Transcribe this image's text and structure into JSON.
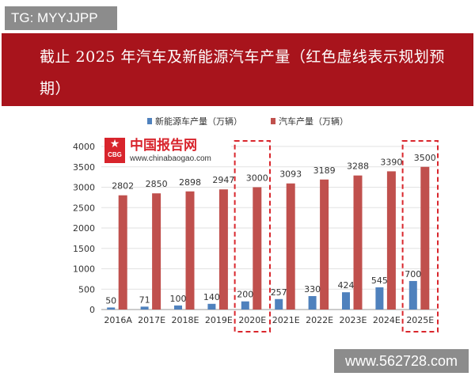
{
  "tag": "TG: MYYJJPP",
  "banner": {
    "title": "截止 2025 年汽车及新能源汽车产量（红色虚线表示规划预期）"
  },
  "logo": {
    "name": "中国报告网",
    "url": "www.chinabaogao.com",
    "mark": "CBG"
  },
  "watermark": "www.562728.com",
  "colors": {
    "banner": "#a8141c",
    "nev": "#4f81bd",
    "car": "#c0504d",
    "highlight": "#d9262c"
  },
  "chart_data": {
    "type": "bar",
    "categories": [
      "2016A",
      "2017E",
      "2018E",
      "2019E",
      "2020E",
      "2021E",
      "2022E",
      "2023E",
      "2024E",
      "2025E"
    ],
    "series": [
      {
        "name": "新能源车产量（万辆）",
        "values": [
          50,
          71,
          100,
          140,
          200,
          257,
          330,
          424,
          545,
          700
        ]
      },
      {
        "name": "汽车产量（万辆）",
        "values": [
          2802,
          2850,
          2898,
          2947,
          3000,
          3093,
          3189,
          3288,
          3390,
          3500
        ]
      }
    ],
    "yticks": [
      0,
      500,
      1000,
      1500,
      2000,
      2500,
      3000,
      3500,
      4000
    ],
    "ylim": [
      0,
      4000
    ],
    "highlighted": [
      "2020E",
      "2025E"
    ],
    "legend": "top",
    "grid": true
  }
}
